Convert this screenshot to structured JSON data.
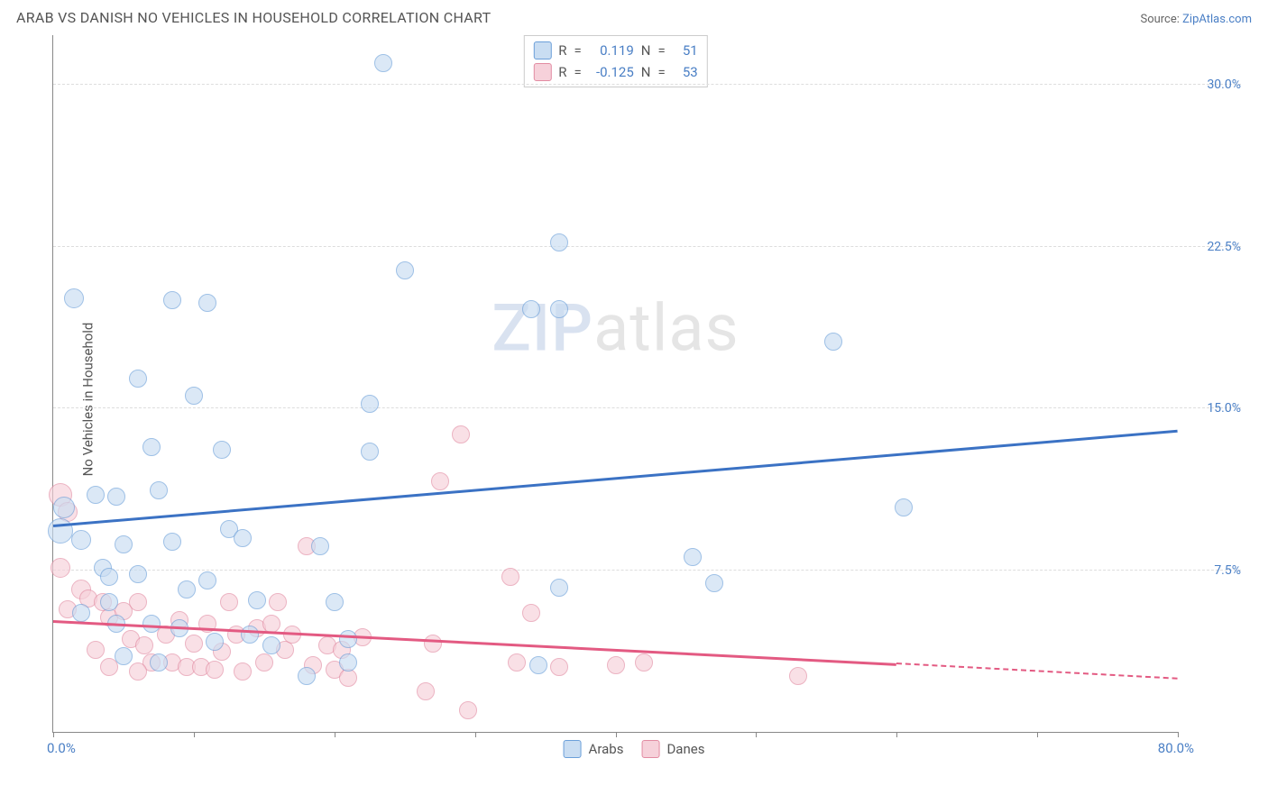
{
  "title": "ARAB VS DANISH NO VEHICLES IN HOUSEHOLD CORRELATION CHART",
  "source_prefix": "Source: ",
  "source_link": "ZipAtlas.com",
  "ylabel": "No Vehicles in Household",
  "watermark_zip": "ZIP",
  "watermark_rest": "atlas",
  "chart": {
    "type": "scatter",
    "xlim": [
      0,
      80
    ],
    "ylim": [
      0,
      32.3
    ],
    "xaxis_min_label": "0.0%",
    "xaxis_max_label": "80.0%",
    "xtick_positions": [
      0,
      10,
      20,
      30,
      40,
      50,
      60,
      70,
      80
    ],
    "ytick_positions": [
      7.5,
      15.0,
      22.5,
      30.0
    ],
    "ytick_labels": [
      "7.5%",
      "15.0%",
      "22.5%",
      "30.0%"
    ],
    "grid_color": "#dddddd",
    "axis_color": "#888888",
    "label_color": "#4a7fc5",
    "background_color": "#ffffff",
    "marker_radius": 10,
    "marker_border_width": 1.2,
    "series": [
      {
        "name": "Arabs",
        "fill": "#c9ddf2",
        "fill_opacity": 0.65,
        "stroke": "#6b9fd9",
        "trend_color": "#3b72c4",
        "R": "0.119",
        "N": "51",
        "trend": {
          "x1": 0,
          "y1": 9.6,
          "x2": 80,
          "y2": 14.0
        },
        "points": [
          {
            "x": 23.5,
            "y": 31.0,
            "r": 10
          },
          {
            "x": 1.5,
            "y": 20.1,
            "r": 11
          },
          {
            "x": 8.5,
            "y": 20.0,
            "r": 10
          },
          {
            "x": 11.0,
            "y": 19.9,
            "r": 10
          },
          {
            "x": 25.0,
            "y": 21.4,
            "r": 10
          },
          {
            "x": 36.0,
            "y": 22.7,
            "r": 10
          },
          {
            "x": 34.0,
            "y": 19.6,
            "r": 10
          },
          {
            "x": 36.0,
            "y": 19.6,
            "r": 10
          },
          {
            "x": 55.5,
            "y": 18.1,
            "r": 10
          },
          {
            "x": 6.0,
            "y": 16.4,
            "r": 10
          },
          {
            "x": 10.0,
            "y": 15.6,
            "r": 10
          },
          {
            "x": 22.5,
            "y": 15.2,
            "r": 10
          },
          {
            "x": 7.0,
            "y": 13.2,
            "r": 10
          },
          {
            "x": 12.0,
            "y": 13.1,
            "r": 10
          },
          {
            "x": 22.5,
            "y": 13.0,
            "r": 10
          },
          {
            "x": 3.0,
            "y": 11.0,
            "r": 10
          },
          {
            "x": 4.5,
            "y": 10.9,
            "r": 10
          },
          {
            "x": 7.5,
            "y": 11.2,
            "r": 10
          },
          {
            "x": 0.8,
            "y": 10.4,
            "r": 12
          },
          {
            "x": 0.5,
            "y": 9.3,
            "r": 14
          },
          {
            "x": 2.0,
            "y": 8.9,
            "r": 11
          },
          {
            "x": 5.0,
            "y": 8.7,
            "r": 10
          },
          {
            "x": 8.5,
            "y": 8.8,
            "r": 10
          },
          {
            "x": 12.5,
            "y": 9.4,
            "r": 10
          },
          {
            "x": 13.5,
            "y": 9.0,
            "r": 10
          },
          {
            "x": 19.0,
            "y": 8.6,
            "r": 10
          },
          {
            "x": 3.5,
            "y": 7.6,
            "r": 10
          },
          {
            "x": 4.0,
            "y": 7.2,
            "r": 10
          },
          {
            "x": 6.0,
            "y": 7.3,
            "r": 10
          },
          {
            "x": 9.5,
            "y": 6.6,
            "r": 10
          },
          {
            "x": 11.0,
            "y": 7.0,
            "r": 10
          },
          {
            "x": 14.5,
            "y": 6.1,
            "r": 10
          },
          {
            "x": 20.0,
            "y": 6.0,
            "r": 10
          },
          {
            "x": 4.5,
            "y": 5.0,
            "r": 10
          },
          {
            "x": 7.0,
            "y": 5.0,
            "r": 10
          },
          {
            "x": 9.0,
            "y": 4.8,
            "r": 10
          },
          {
            "x": 11.5,
            "y": 4.2,
            "r": 10
          },
          {
            "x": 14.0,
            "y": 4.5,
            "r": 10
          },
          {
            "x": 15.5,
            "y": 4.0,
            "r": 10
          },
          {
            "x": 18.0,
            "y": 2.6,
            "r": 10
          },
          {
            "x": 21.0,
            "y": 4.3,
            "r": 10
          },
          {
            "x": 21.0,
            "y": 3.2,
            "r": 10
          },
          {
            "x": 5.0,
            "y": 3.5,
            "r": 10
          },
          {
            "x": 7.5,
            "y": 3.2,
            "r": 10
          },
          {
            "x": 34.5,
            "y": 3.1,
            "r": 10
          },
          {
            "x": 36.0,
            "y": 6.7,
            "r": 10
          },
          {
            "x": 45.5,
            "y": 8.1,
            "r": 10
          },
          {
            "x": 47.0,
            "y": 6.9,
            "r": 10
          },
          {
            "x": 60.5,
            "y": 10.4,
            "r": 10
          },
          {
            "x": 4.0,
            "y": 6.0,
            "r": 10
          },
          {
            "x": 2.0,
            "y": 5.5,
            "r": 10
          }
        ]
      },
      {
        "name": "Danes",
        "fill": "#f6d1da",
        "fill_opacity": 0.65,
        "stroke": "#e28ba2",
        "trend_color": "#e35a82",
        "R": "-0.125",
        "N": "53",
        "trend": {
          "x1": 0,
          "y1": 5.2,
          "x2": 60,
          "y2": 3.2
        },
        "trend_dash": {
          "x1": 60,
          "y1": 3.2,
          "x2": 80,
          "y2": 2.5
        },
        "points": [
          {
            "x": 0.5,
            "y": 11.0,
            "r": 13
          },
          {
            "x": 1.0,
            "y": 10.2,
            "r": 11
          },
          {
            "x": 0.5,
            "y": 7.6,
            "r": 11
          },
          {
            "x": 2.0,
            "y": 6.6,
            "r": 11
          },
          {
            "x": 1.0,
            "y": 5.7,
            "r": 10
          },
          {
            "x": 2.5,
            "y": 6.2,
            "r": 10
          },
          {
            "x": 3.5,
            "y": 6.0,
            "r": 10
          },
          {
            "x": 4.0,
            "y": 5.3,
            "r": 10
          },
          {
            "x": 5.0,
            "y": 5.6,
            "r": 10
          },
          {
            "x": 5.5,
            "y": 4.3,
            "r": 10
          },
          {
            "x": 6.0,
            "y": 6.0,
            "r": 10
          },
          {
            "x": 6.5,
            "y": 4.0,
            "r": 10
          },
          {
            "x": 7.0,
            "y": 3.2,
            "r": 10
          },
          {
            "x": 8.0,
            "y": 4.5,
            "r": 10
          },
          {
            "x": 8.5,
            "y": 3.2,
            "r": 10
          },
          {
            "x": 9.0,
            "y": 5.2,
            "r": 10
          },
          {
            "x": 9.5,
            "y": 3.0,
            "r": 10
          },
          {
            "x": 10.0,
            "y": 4.1,
            "r": 10
          },
          {
            "x": 10.5,
            "y": 3.0,
            "r": 10
          },
          {
            "x": 11.0,
            "y": 5.0,
            "r": 10
          },
          {
            "x": 11.5,
            "y": 2.9,
            "r": 10
          },
          {
            "x": 12.0,
            "y": 3.7,
            "r": 10
          },
          {
            "x": 13.0,
            "y": 4.5,
            "r": 10
          },
          {
            "x": 13.5,
            "y": 2.8,
            "r": 10
          },
          {
            "x": 14.5,
            "y": 4.8,
            "r": 10
          },
          {
            "x": 15.0,
            "y": 3.2,
            "r": 10
          },
          {
            "x": 15.5,
            "y": 5.0,
            "r": 10
          },
          {
            "x": 16.0,
            "y": 6.0,
            "r": 10
          },
          {
            "x": 16.5,
            "y": 3.8,
            "r": 10
          },
          {
            "x": 17.0,
            "y": 4.5,
            "r": 10
          },
          {
            "x": 18.0,
            "y": 8.6,
            "r": 10
          },
          {
            "x": 18.5,
            "y": 3.1,
            "r": 10
          },
          {
            "x": 19.5,
            "y": 4.0,
            "r": 10
          },
          {
            "x": 20.0,
            "y": 2.9,
            "r": 10
          },
          {
            "x": 20.5,
            "y": 3.8,
            "r": 10
          },
          {
            "x": 21.0,
            "y": 2.5,
            "r": 10
          },
          {
            "x": 22.0,
            "y": 4.4,
            "r": 10
          },
          {
            "x": 26.5,
            "y": 1.9,
            "r": 10
          },
          {
            "x": 27.0,
            "y": 4.1,
            "r": 10
          },
          {
            "x": 27.5,
            "y": 11.6,
            "r": 10
          },
          {
            "x": 29.0,
            "y": 13.8,
            "r": 10
          },
          {
            "x": 29.5,
            "y": 1.0,
            "r": 10
          },
          {
            "x": 32.5,
            "y": 7.2,
            "r": 10
          },
          {
            "x": 33.0,
            "y": 3.2,
            "r": 10
          },
          {
            "x": 34.0,
            "y": 5.5,
            "r": 10
          },
          {
            "x": 36.0,
            "y": 3.0,
            "r": 10
          },
          {
            "x": 40.0,
            "y": 3.1,
            "r": 10
          },
          {
            "x": 42.0,
            "y": 3.2,
            "r": 10
          },
          {
            "x": 53.0,
            "y": 2.6,
            "r": 10
          },
          {
            "x": 3.0,
            "y": 3.8,
            "r": 10
          },
          {
            "x": 4.0,
            "y": 3.0,
            "r": 10
          },
          {
            "x": 6.0,
            "y": 2.8,
            "r": 10
          },
          {
            "x": 12.5,
            "y": 6.0,
            "r": 10
          }
        ]
      }
    ]
  },
  "legend_labels": {
    "R": "R",
    "eq": "=",
    "N": "N"
  }
}
